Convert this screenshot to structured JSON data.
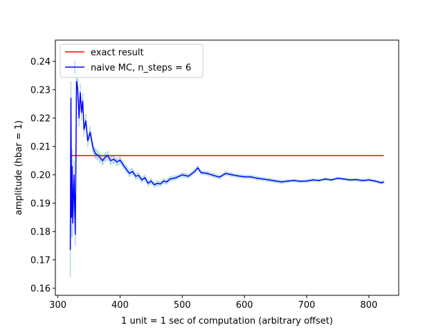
{
  "chart_data": {
    "type": "line",
    "title": "",
    "xlabel": "1 unit = 1 sec of computation (arbitrary offset)",
    "ylabel": "amplitude (hbar = 1)",
    "xlim": [
      296,
      848
    ],
    "ylim": [
      0.1575,
      0.2475
    ],
    "xticks": [
      300,
      400,
      500,
      600,
      700,
      800
    ],
    "yticks": [
      0.16,
      0.17,
      0.18,
      0.19,
      0.2,
      0.21,
      0.22,
      0.23,
      0.24
    ],
    "grid": false,
    "legend_position": "top-left",
    "colors": {
      "exact": "#ff0000",
      "mc": "#0000ff",
      "errorbar": "#add8e6"
    },
    "series": [
      {
        "name": "exact result",
        "style": "line",
        "x": [
          321,
          824
        ],
        "y": [
          0.2068,
          0.2068
        ]
      },
      {
        "name": "naive MC, n_steps = 6",
        "style": "errorbar-line",
        "x": [
          320,
          321,
          322,
          323,
          324,
          325,
          326,
          327,
          328,
          329,
          330,
          332,
          334,
          336,
          338,
          340,
          342,
          345,
          348,
          352,
          356,
          360,
          364,
          368,
          372,
          376,
          380,
          385,
          390,
          395,
          400,
          405,
          410,
          415,
          420,
          425,
          430,
          435,
          440,
          445,
          450,
          455,
          460,
          465,
          470,
          475,
          480,
          490,
          500,
          510,
          520,
          525,
          530,
          540,
          550,
          560,
          570,
          580,
          590,
          600,
          610,
          620,
          630,
          640,
          650,
          660,
          670,
          680,
          690,
          700,
          710,
          720,
          730,
          740,
          750,
          760,
          770,
          780,
          790,
          800,
          810,
          815,
          820,
          824
        ],
        "y": [
          0.1735,
          0.227,
          0.185,
          0.203,
          0.183,
          0.192,
          0.2,
          0.189,
          0.179,
          0.205,
          0.233,
          0.23,
          0.22,
          0.229,
          0.222,
          0.226,
          0.216,
          0.219,
          0.212,
          0.215,
          0.21,
          0.2075,
          0.207,
          0.206,
          0.205,
          0.2062,
          0.2068,
          0.205,
          0.2055,
          0.2045,
          0.2052,
          0.2035,
          0.202,
          0.2005,
          0.2012,
          0.1995,
          0.1998,
          0.1982,
          0.199,
          0.197,
          0.1978,
          0.1965,
          0.197,
          0.1968,
          0.1978,
          0.1975,
          0.1985,
          0.199,
          0.2,
          0.1995,
          0.2012,
          0.2025,
          0.2008,
          0.2005,
          0.1998,
          0.1992,
          0.2005,
          0.2,
          0.1996,
          0.1993,
          0.1993,
          0.1988,
          0.1985,
          0.1982,
          0.1978,
          0.1975,
          0.1978,
          0.198,
          0.1977,
          0.1978,
          0.1982,
          0.198,
          0.1985,
          0.1982,
          0.1988,
          0.1985,
          0.1982,
          0.1983,
          0.198,
          0.1982,
          0.1978,
          0.1975,
          0.1972,
          0.1975
        ],
        "yerr": [
          0.0095,
          0.006,
          0.007,
          0.006,
          0.005,
          0.005,
          0.005,
          0.004,
          0.004,
          0.004,
          0.004,
          0.004,
          0.003,
          0.003,
          0.003,
          0.0028,
          0.0025,
          0.0024,
          0.0023,
          0.0022,
          0.002,
          0.0019,
          0.0018,
          0.0018,
          0.0017,
          0.0016,
          0.0016,
          0.0015,
          0.0015,
          0.0014,
          0.0014,
          0.0013,
          0.0013,
          0.0013,
          0.0012,
          0.0012,
          0.0012,
          0.0011,
          0.0011,
          0.0011,
          0.0011,
          0.001,
          0.001,
          0.001,
          0.001,
          0.001,
          0.001,
          0.0009,
          0.0009,
          0.0009,
          0.0009,
          0.0009,
          0.0008,
          0.0008,
          0.0008,
          0.0008,
          0.0008,
          0.0008,
          0.0007,
          0.0007,
          0.0007,
          0.0007,
          0.0007,
          0.0007,
          0.0007,
          0.0007,
          0.0006,
          0.0006,
          0.0006,
          0.0006,
          0.0006,
          0.0006,
          0.0006,
          0.0006,
          0.0006,
          0.0006,
          0.0006,
          0.0006,
          0.0006,
          0.0006,
          0.0006,
          0.0006,
          0.0006,
          0.0006
        ]
      }
    ]
  }
}
